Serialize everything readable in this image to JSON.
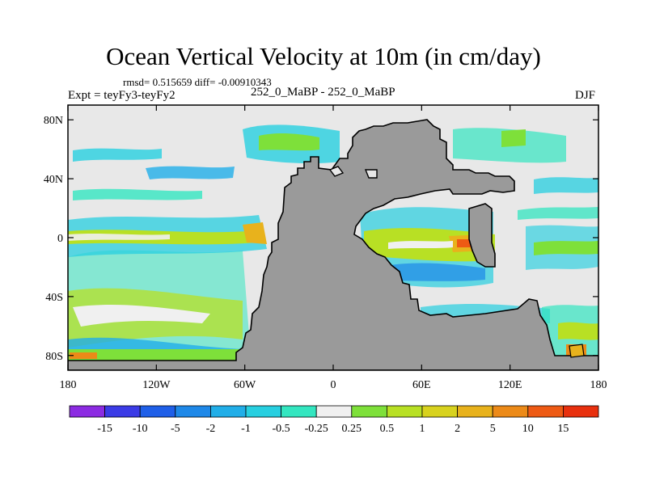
{
  "title": "Ocean Vertical Velocity at 10m (in cm/day)",
  "stats": "rmsd= 0.515659 diff= -0.00910343",
  "experiment": "Expt = teyFy3-teyFy2",
  "subtitle": "252_0_MaBP - 252_0_MaBP",
  "season": "DJF",
  "colors": {
    "land": "#9a9a9a",
    "ocean_neutral": "#e8e8e8"
  },
  "chart_data": {
    "type": "heatmap",
    "projection": "cylindrical-equidistant",
    "xlim": [
      -180,
      180
    ],
    "ylim": [
      -90,
      90
    ],
    "x_ticks": [
      {
        "value": -180,
        "label": "180"
      },
      {
        "value": -120,
        "label": "120W"
      },
      {
        "value": -60,
        "label": "60W"
      },
      {
        "value": 0,
        "label": "0"
      },
      {
        "value": 60,
        "label": "60E"
      },
      {
        "value": 120,
        "label": "120E"
      },
      {
        "value": 180,
        "label": "180"
      }
    ],
    "y_ticks": [
      {
        "value": 80,
        "label": "80N"
      },
      {
        "value": 40,
        "label": "40N"
      },
      {
        "value": 0,
        "label": "0"
      },
      {
        "value": -40,
        "label": "40S"
      },
      {
        "value": -80,
        "label": "80S"
      }
    ],
    "colorbar": {
      "labels": [
        "-15",
        "-10",
        "-5",
        "-2",
        "-1",
        "-0.5",
        "-0.25",
        "0.25",
        "0.5",
        "1",
        "2",
        "5",
        "10",
        "15"
      ],
      "colors": [
        "#8c2be2",
        "#3b3be6",
        "#1f5fe8",
        "#1e88e8",
        "#21aee8",
        "#27cfe0",
        "#33e6c0",
        "#f0f0f0",
        "#7ee03a",
        "#b8e024",
        "#d8d21e",
        "#e8b21c",
        "#ec8a18",
        "#ee5a14",
        "#e8300e"
      ]
    }
  }
}
